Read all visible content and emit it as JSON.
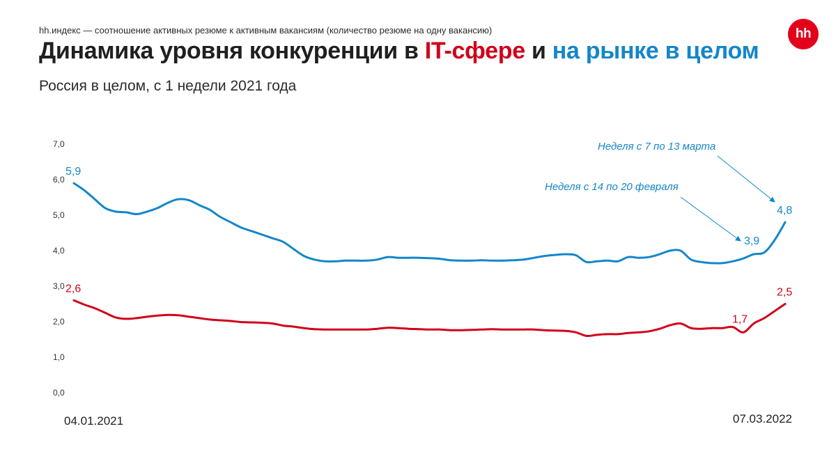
{
  "header": {
    "source_note": "hh.индекс — соотношение активных резюме к активным вакансиям (количество резюме на одну вакансию)",
    "title_part1": "Динамика уровня конкуренции в ",
    "title_part2": "IT-сфере",
    "title_part3": " и ",
    "title_part4": "на рынке в целом",
    "subtitle": "Россия в целом, с 1 недели 2021 года",
    "logo": "hh"
  },
  "colors": {
    "it": "#d0021b",
    "market": "#1486c9",
    "logo": "#e3001b"
  },
  "chart_data": {
    "type": "line",
    "ylim": [
      0,
      7
    ],
    "yticks": [
      "0,0",
      "1,0",
      "2,0",
      "3,0",
      "4,0",
      "5,0",
      "6,0",
      "7,0"
    ],
    "x_start_label": "04.01.2021",
    "x_end_label": "07.03.2022",
    "grid": false,
    "series": [
      {
        "key": "market",
        "color": "#1486c9",
        "values": [
          5.9,
          5.7,
          5.45,
          5.2,
          5.1,
          5.08,
          5.03,
          5.1,
          5.2,
          5.35,
          5.45,
          5.42,
          5.28,
          5.15,
          4.95,
          4.8,
          4.65,
          4.55,
          4.45,
          4.35,
          4.25,
          4.05,
          3.85,
          3.75,
          3.7,
          3.7,
          3.72,
          3.72,
          3.72,
          3.75,
          3.82,
          3.8,
          3.8,
          3.8,
          3.79,
          3.77,
          3.73,
          3.72,
          3.72,
          3.73,
          3.72,
          3.72,
          3.73,
          3.75,
          3.8,
          3.85,
          3.88,
          3.9,
          3.87,
          3.68,
          3.7,
          3.72,
          3.7,
          3.82,
          3.8,
          3.82,
          3.9,
          4.0,
          4.0,
          3.75,
          3.68,
          3.65,
          3.65,
          3.7,
          3.78,
          3.9,
          3.95,
          4.3,
          4.8
        ]
      },
      {
        "key": "it",
        "color": "#d0021b",
        "values": [
          2.6,
          2.48,
          2.38,
          2.25,
          2.12,
          2.08,
          2.1,
          2.14,
          2.17,
          2.19,
          2.18,
          2.14,
          2.1,
          2.06,
          2.04,
          2.02,
          1.99,
          1.98,
          1.97,
          1.95,
          1.89,
          1.86,
          1.82,
          1.79,
          1.78,
          1.78,
          1.78,
          1.78,
          1.78,
          1.8,
          1.83,
          1.82,
          1.8,
          1.79,
          1.78,
          1.78,
          1.76,
          1.76,
          1.77,
          1.78,
          1.79,
          1.78,
          1.78,
          1.78,
          1.78,
          1.76,
          1.75,
          1.74,
          1.7,
          1.6,
          1.63,
          1.65,
          1.65,
          1.68,
          1.7,
          1.73,
          1.8,
          1.9,
          1.95,
          1.82,
          1.8,
          1.82,
          1.82,
          1.85,
          1.7,
          1.95,
          2.1,
          2.3,
          2.5
        ]
      }
    ],
    "data_labels": [
      {
        "series": "market",
        "index": 0,
        "text": "5,9"
      },
      {
        "series": "market",
        "index": 65,
        "text": "3,9"
      },
      {
        "series": "market",
        "index": 68,
        "text": "4,8"
      },
      {
        "series": "it",
        "index": 0,
        "text": "2,6"
      },
      {
        "series": "it",
        "index": 64,
        "text": "1,7"
      },
      {
        "series": "it",
        "index": 68,
        "text": "2,5"
      }
    ],
    "annotations": [
      {
        "text": "Неделя с 7 по 13 марта",
        "target": "market-68"
      },
      {
        "text": "Неделя с 14 по 20 февраля",
        "target": "market-65"
      }
    ]
  }
}
